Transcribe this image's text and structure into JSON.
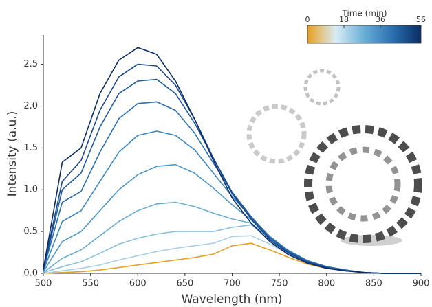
{
  "chart_data": {
    "type": "line",
    "xlabel": "Wavelength (nm)",
    "ylabel": "Intensity (a.u.)",
    "x": [
      500,
      520,
      540,
      560,
      580,
      600,
      620,
      640,
      660,
      680,
      700,
      720,
      740,
      760,
      780,
      800,
      820,
      840,
      860,
      880,
      900
    ],
    "series": [
      {
        "color": "#e8a020",
        "values": [
          0,
          0.01,
          0.02,
          0.04,
          0.07,
          0.1,
          0.13,
          0.16,
          0.19,
          0.23,
          0.33,
          0.36,
          0.28,
          0.19,
          0.11,
          0.06,
          0.03,
          0.01,
          0,
          0,
          0
        ]
      },
      {
        "color": "#a8d0e6",
        "values": [
          0,
          0.03,
          0.06,
          0.1,
          0.16,
          0.21,
          0.26,
          0.3,
          0.33,
          0.36,
          0.44,
          0.45,
          0.35,
          0.23,
          0.13,
          0.07,
          0.03,
          0.01,
          0,
          0,
          0
        ]
      },
      {
        "color": "#8cc0e0",
        "values": [
          0.01,
          0.08,
          0.14,
          0.24,
          0.35,
          0.42,
          0.47,
          0.5,
          0.5,
          0.5,
          0.55,
          0.58,
          0.42,
          0.27,
          0.15,
          0.08,
          0.04,
          0.01,
          0,
          0,
          0
        ]
      },
      {
        "color": "#6aaed6",
        "values": [
          0.01,
          0.18,
          0.28,
          0.45,
          0.62,
          0.75,
          0.83,
          0.85,
          0.8,
          0.72,
          0.65,
          0.6,
          0.42,
          0.27,
          0.15,
          0.08,
          0.04,
          0.01,
          0,
          0,
          0
        ]
      },
      {
        "color": "#4a98c9",
        "values": [
          0.02,
          0.38,
          0.5,
          0.75,
          1.0,
          1.18,
          1.28,
          1.3,
          1.2,
          1.02,
          0.82,
          0.64,
          0.43,
          0.27,
          0.15,
          0.08,
          0.04,
          0.01,
          0,
          0,
          0
        ]
      },
      {
        "color": "#3a86be",
        "values": [
          0.03,
          0.62,
          0.75,
          1.1,
          1.45,
          1.65,
          1.7,
          1.65,
          1.48,
          1.2,
          0.92,
          0.67,
          0.44,
          0.27,
          0.15,
          0.08,
          0.04,
          0.01,
          0,
          0,
          0
        ]
      },
      {
        "color": "#2a6fb0",
        "values": [
          0.04,
          0.85,
          0.98,
          1.45,
          1.85,
          2.03,
          2.05,
          1.95,
          1.68,
          1.32,
          0.97,
          0.68,
          0.43,
          0.26,
          0.15,
          0.08,
          0.04,
          0.01,
          0,
          0,
          0
        ]
      },
      {
        "color": "#1e5a9e",
        "values": [
          0.04,
          1.0,
          1.2,
          1.75,
          2.15,
          2.3,
          2.32,
          2.15,
          1.8,
          1.38,
          0.97,
          0.67,
          0.42,
          0.25,
          0.14,
          0.07,
          0.03,
          0.01,
          0,
          0,
          0
        ]
      },
      {
        "color": "#17478a",
        "values": [
          0.05,
          1.1,
          1.35,
          1.95,
          2.35,
          2.5,
          2.48,
          2.25,
          1.85,
          1.38,
          0.95,
          0.65,
          0.4,
          0.24,
          0.13,
          0.07,
          0.03,
          0.01,
          0,
          0,
          0
        ]
      },
      {
        "color": "#0b2c63",
        "values": [
          0.05,
          1.33,
          1.5,
          2.15,
          2.55,
          2.7,
          2.62,
          2.3,
          1.85,
          1.35,
          0.9,
          0.6,
          0.38,
          0.22,
          0.12,
          0.06,
          0.03,
          0.01,
          0,
          0,
          0
        ]
      }
    ],
    "xlim": [
      500,
      900
    ],
    "xticks": [
      500,
      550,
      600,
      650,
      700,
      750,
      800,
      850,
      900
    ],
    "ylim": [
      0,
      2.85
    ],
    "yticks": [
      {
        "value": 0,
        "label": "0.0"
      },
      0.5,
      {
        "value": 1,
        "label": "1.0"
      },
      1.5,
      {
        "value": 2,
        "label": "2.0"
      },
      2.5
    ],
    "colorbar": {
      "title": "Time (min)",
      "lim": [
        0,
        56
      ],
      "ticks": [
        0,
        18,
        36,
        56
      ],
      "colors": [
        "#e8a020",
        "#d8ecf6",
        "#6aaed6",
        "#2a6fb0",
        "#0b2c63"
      ]
    }
  }
}
